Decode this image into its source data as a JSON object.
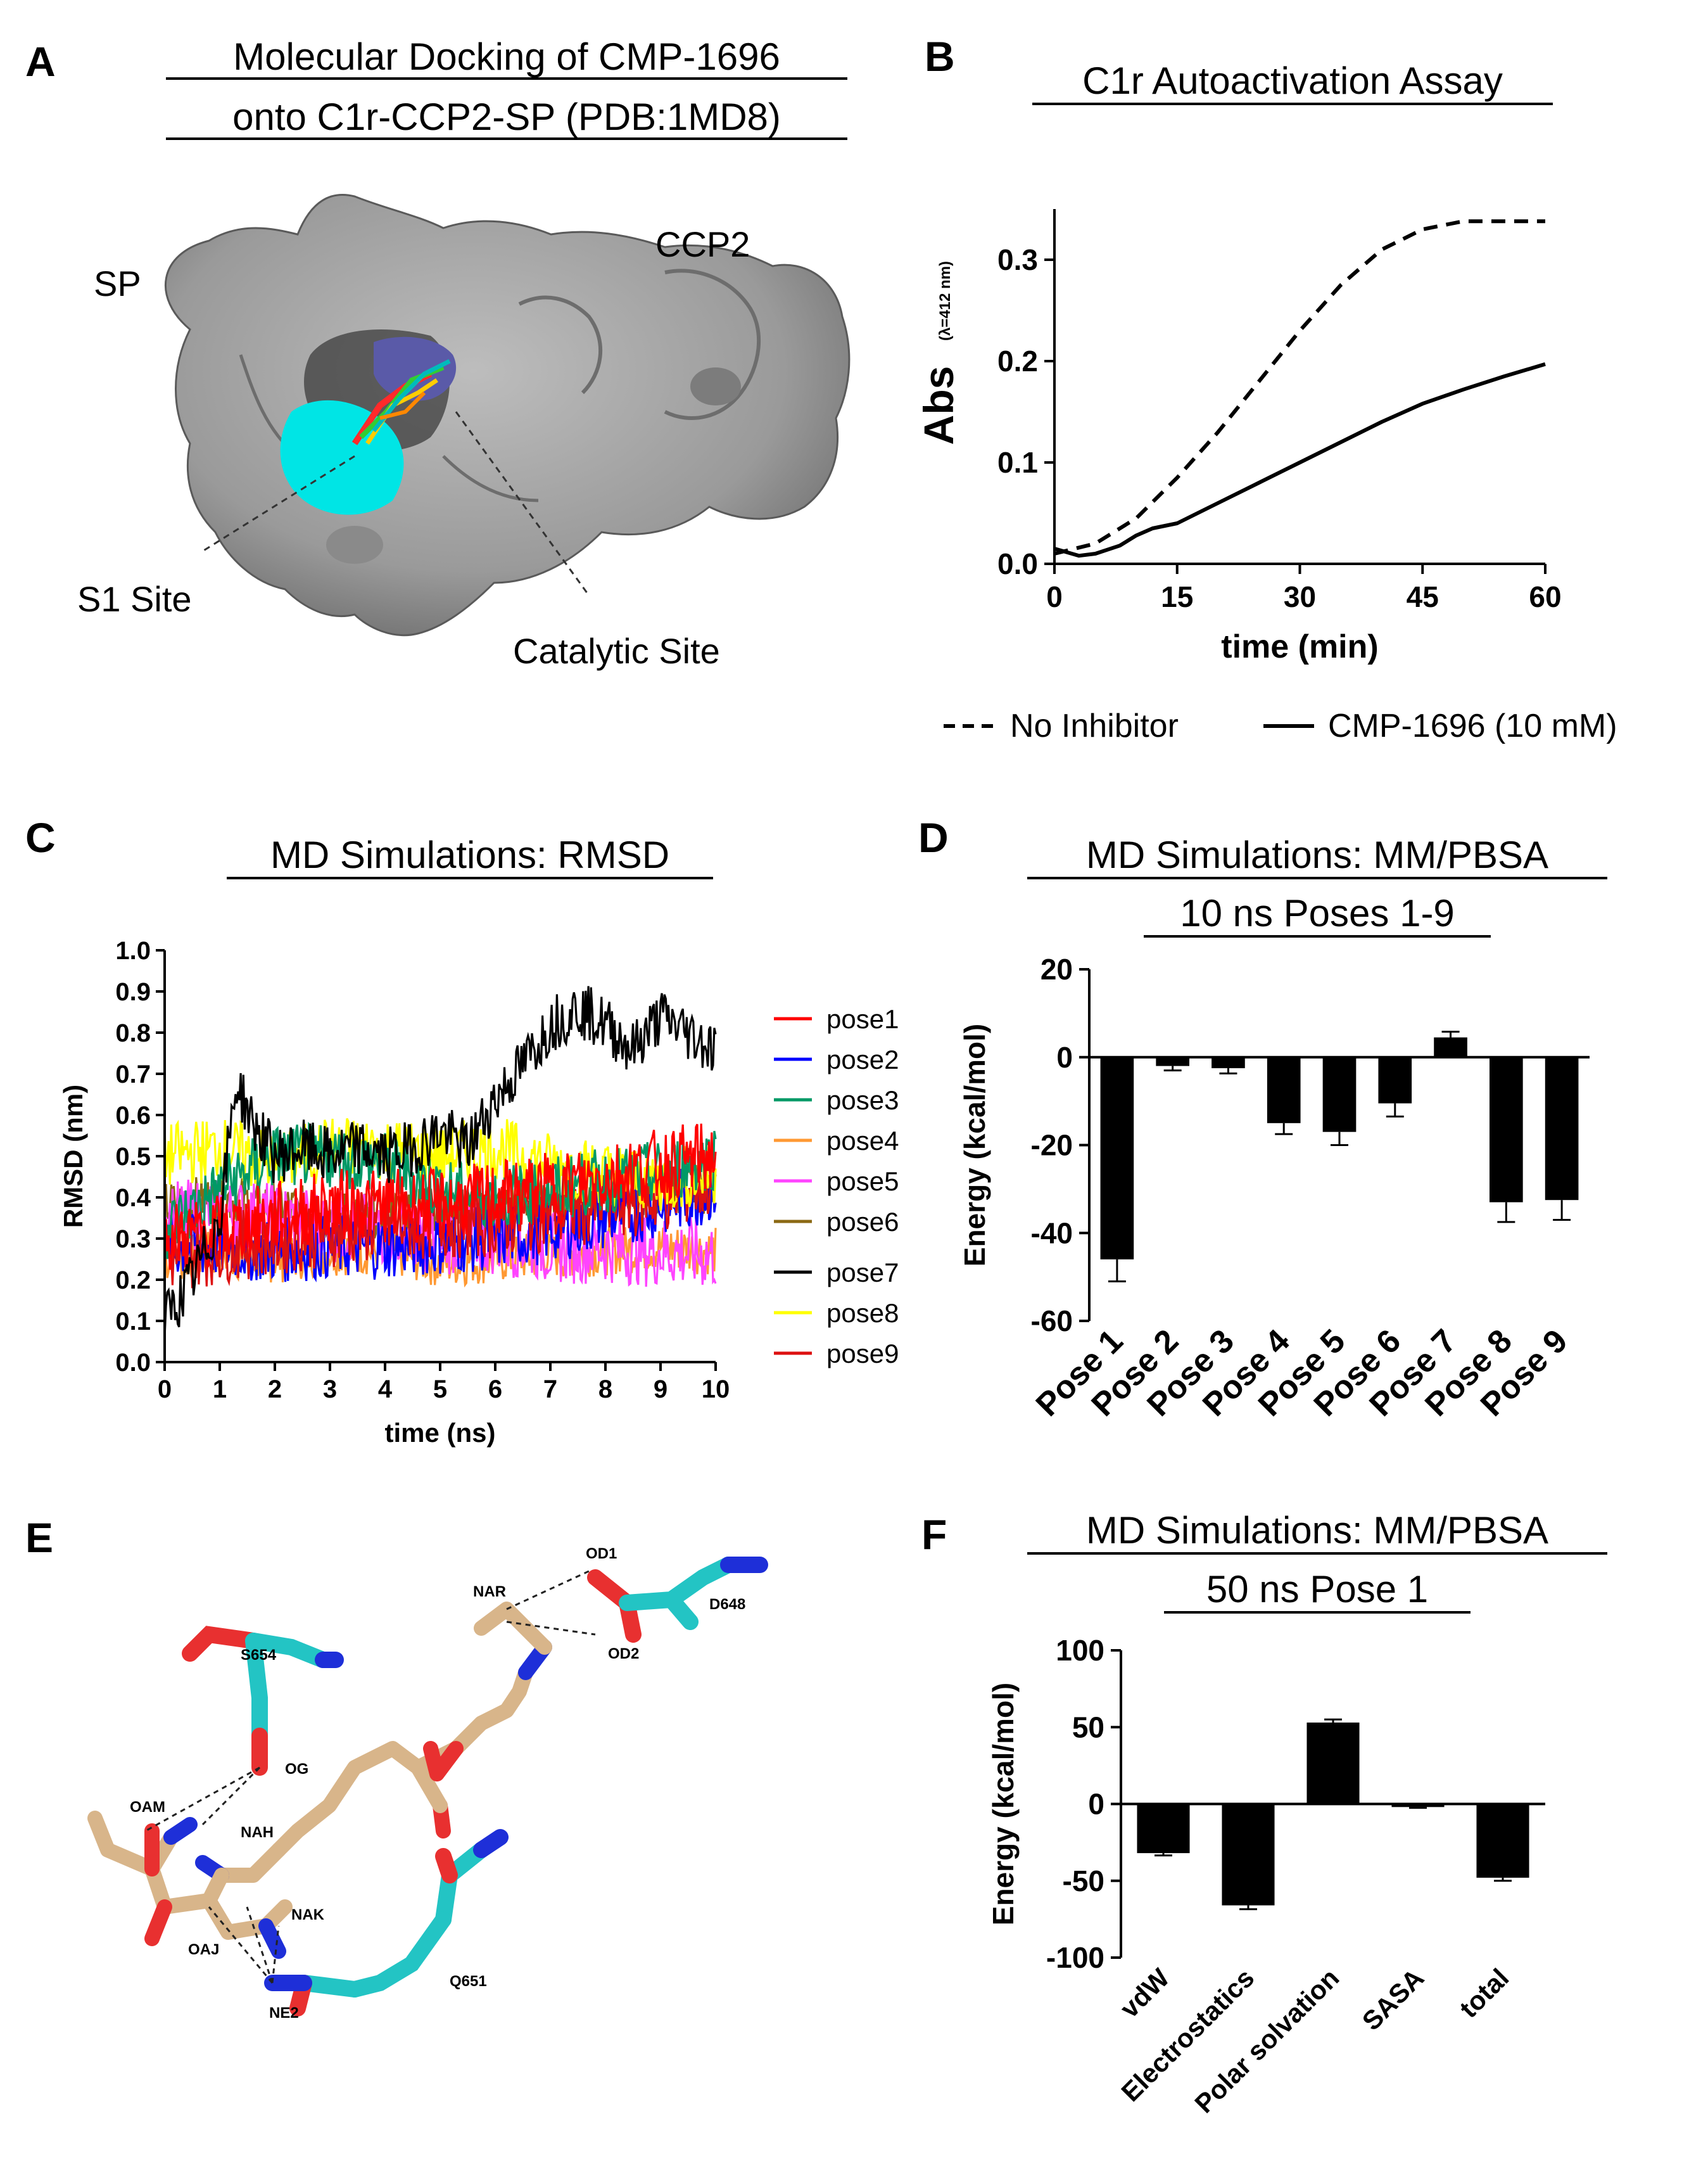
{
  "panels": {
    "A": {
      "letter": "A",
      "title_lines": [
        "Molecular Docking of CMP-1696",
        "onto C1r-CCP2-SP (PDB:1MD8)"
      ],
      "labels": {
        "sp": "SP",
        "ccp2": "CCP2",
        "s1": "S1 Site",
        "catalytic": "Catalytic Site"
      }
    },
    "B": {
      "letter": "B",
      "title": "C1r Autoactivation Assay"
    },
    "C": {
      "letter": "C",
      "title": "MD Simulations: RMSD"
    },
    "D": {
      "letter": "D",
      "title_lines": [
        "MD Simulations: MM/PBSA",
        "10 ns Poses 1-9"
      ]
    },
    "E": {
      "letter": "E",
      "atom_labels": {
        "od1": "OD1",
        "od2": "OD2",
        "nar": "NAR",
        "d648": "D648",
        "s654": "S654",
        "og": "OG",
        "oam": "OAM",
        "nah": "NAH",
        "nak": "NAK",
        "oaj": "OAJ",
        "q651": "Q651",
        "ne2": "NE2"
      }
    },
    "F": {
      "letter": "F",
      "title_lines": [
        "MD Simulations: MM/PBSA",
        "50 ns Pose 1"
      ]
    }
  },
  "colors": {
    "protein_surface": "#8c8c8c",
    "s1_site": "#00e5e5",
    "catalytic_site": "#5a5aa8",
    "carbon_ligand": "#d8b58a",
    "carbon_protein": "#23c4c4",
    "oxygen": "#e83030",
    "nitrogen": "#1e2fd8"
  },
  "chart_data": [
    {
      "id": "B",
      "type": "line",
      "title": "C1r Autoactivation Assay",
      "xlabel": "time  (min)",
      "ylabel": "Abs",
      "ylabel_sub": "(λ=412 nm)",
      "xlim": [
        0,
        60
      ],
      "ylim": [
        0,
        0.35
      ],
      "xticks": [
        "0",
        "15",
        "30",
        "45",
        "60"
      ],
      "yticks": [
        "0.0",
        "0.1",
        "0.2",
        "0.3"
      ],
      "series": [
        {
          "name": "No Inhibitor",
          "style": "dashed",
          "x": [
            0,
            5,
            10,
            15,
            20,
            25,
            30,
            35,
            40,
            45,
            50,
            55,
            60
          ],
          "y": [
            0.01,
            0.02,
            0.045,
            0.085,
            0.13,
            0.18,
            0.23,
            0.275,
            0.31,
            0.33,
            0.338,
            0.338,
            0.338
          ]
        },
        {
          "name": "CMP-1696 (10 mM)",
          "style": "solid",
          "x": [
            0,
            3,
            5,
            8,
            10,
            12,
            15,
            20,
            25,
            30,
            35,
            40,
            45,
            50,
            55,
            60
          ],
          "y": [
            0.015,
            0.008,
            0.01,
            0.018,
            0.028,
            0.035,
            0.04,
            0.06,
            0.08,
            0.1,
            0.12,
            0.14,
            0.158,
            0.172,
            0.185,
            0.197
          ]
        }
      ]
    },
    {
      "id": "C",
      "type": "line",
      "title": "MD Simulations: RMSD",
      "xlabel": "time (ns)",
      "ylabel": "RMSD (nm)",
      "xlim": [
        0,
        10
      ],
      "ylim": [
        0,
        1.0
      ],
      "xticks": [
        "0",
        "1",
        "2",
        "3",
        "4",
        "5",
        "6",
        "7",
        "8",
        "9",
        "10"
      ],
      "yticks": [
        "0.0",
        "0.1",
        "0.2",
        "0.3",
        "0.4",
        "0.5",
        "0.6",
        "0.7",
        "0.8",
        "0.9",
        "1.0"
      ],
      "series": [
        {
          "name": "pose1",
          "color": "#ff0000",
          "x": [
            0,
            1,
            2,
            3,
            4,
            5,
            6,
            7,
            8,
            9,
            10
          ],
          "y": [
            0.3,
            0.32,
            0.35,
            0.38,
            0.38,
            0.38,
            0.4,
            0.42,
            0.45,
            0.48,
            0.5
          ]
        },
        {
          "name": "pose2",
          "color": "#0000ff",
          "x": [
            0,
            1,
            2,
            3,
            4,
            5,
            6,
            7,
            8,
            9,
            10
          ],
          "y": [
            0.28,
            0.28,
            0.27,
            0.28,
            0.28,
            0.29,
            0.3,
            0.32,
            0.35,
            0.38,
            0.42
          ]
        },
        {
          "name": "pose3",
          "color": "#009966",
          "x": [
            0,
            1,
            2,
            3,
            4,
            5,
            6,
            7,
            8,
            9,
            10
          ],
          "y": [
            0.32,
            0.42,
            0.5,
            0.5,
            0.48,
            0.42,
            0.4,
            0.42,
            0.44,
            0.46,
            0.5
          ]
        },
        {
          "name": "pose4",
          "color": "#ff9933",
          "x": [
            0,
            1,
            2,
            3,
            4,
            5,
            6,
            7,
            8,
            9,
            10
          ],
          "y": [
            0.25,
            0.26,
            0.25,
            0.27,
            0.27,
            0.24,
            0.25,
            0.26,
            0.27,
            0.28,
            0.27
          ]
        },
        {
          "name": "pose5",
          "color": "#ff44ff",
          "x": [
            0,
            1,
            2,
            3,
            4,
            5,
            6,
            7,
            8,
            9,
            10
          ],
          "y": [
            0.35,
            0.36,
            0.35,
            0.33,
            0.32,
            0.3,
            0.3,
            0.28,
            0.28,
            0.27,
            0.26
          ]
        },
        {
          "name": "pose6",
          "color": "#8b6914",
          "x": [
            0,
            1,
            2,
            3,
            4,
            5,
            6,
            7,
            8,
            9,
            10
          ],
          "y": [
            0.38,
            0.4,
            0.38,
            0.36,
            0.36,
            0.38,
            0.38,
            0.39,
            0.4,
            0.42,
            0.42
          ]
        },
        {
          "name": "pose7",
          "color": "#000000",
          "x": [
            0,
            0.5,
            1,
            1.3,
            1.6,
            2,
            2.5,
            3,
            3.5,
            4,
            4.5,
            5,
            5.5,
            6,
            6.5,
            7,
            7.5,
            8,
            8.5,
            9,
            9.5,
            10
          ],
          "y": [
            0.1,
            0.2,
            0.35,
            0.68,
            0.58,
            0.5,
            0.52,
            0.5,
            0.52,
            0.5,
            0.52,
            0.56,
            0.52,
            0.64,
            0.72,
            0.82,
            0.86,
            0.82,
            0.76,
            0.84,
            0.8,
            0.76
          ]
        },
        {
          "name": "pose8",
          "color": "#ffff00",
          "x": [
            0,
            1,
            2,
            3,
            4,
            5,
            6,
            7,
            8,
            9,
            10
          ],
          "y": [
            0.5,
            0.52,
            0.48,
            0.52,
            0.52,
            0.5,
            0.52,
            0.48,
            0.46,
            0.44,
            0.46
          ]
        },
        {
          "name": "pose9",
          "color": "#dd1111",
          "x": [
            0,
            1,
            2,
            3,
            4,
            5,
            6,
            7,
            8,
            9,
            10
          ],
          "y": [
            0.25,
            0.28,
            0.3,
            0.32,
            0.33,
            0.34,
            0.34,
            0.36,
            0.38,
            0.4,
            0.44
          ]
        }
      ]
    },
    {
      "id": "D",
      "type": "bar",
      "title": "MD Simulations: MM/PBSA 10 ns Poses 1-9",
      "ylabel": "Energy (kcal/mol)",
      "ylim": [
        -60,
        20
      ],
      "yticks": [
        "20",
        "0",
        "-20",
        "-40",
        "-60"
      ],
      "categories": [
        "Pose 1",
        "Pose 2",
        "Pose 3",
        "Pose 4",
        "Pose 5",
        "Pose 6",
        "Pose 7",
        "Pose 8",
        "Pose 9"
      ],
      "values": [
        -46,
        -2,
        -2.5,
        -15,
        -17,
        -10.5,
        4.5,
        -33,
        -32.5
      ],
      "errors": [
        5,
        1,
        1.2,
        2.5,
        3,
        3,
        1.3,
        4.5,
        4.5
      ]
    },
    {
      "id": "F",
      "type": "bar",
      "title": "MD Simulations: MM/PBSA 50 ns Pose 1",
      "ylabel": "Energy (kcal/mol)",
      "ylim": [
        -100,
        100
      ],
      "yticks": [
        "100",
        "50",
        "0",
        "-50",
        "-100"
      ],
      "categories": [
        "vdW",
        "Electrostatics",
        "Polar solvation",
        "SASA",
        "total"
      ],
      "values": [
        -32,
        -66,
        53,
        -2,
        -48
      ],
      "errors": [
        1.5,
        2.5,
        2,
        0.5,
        2
      ]
    }
  ]
}
